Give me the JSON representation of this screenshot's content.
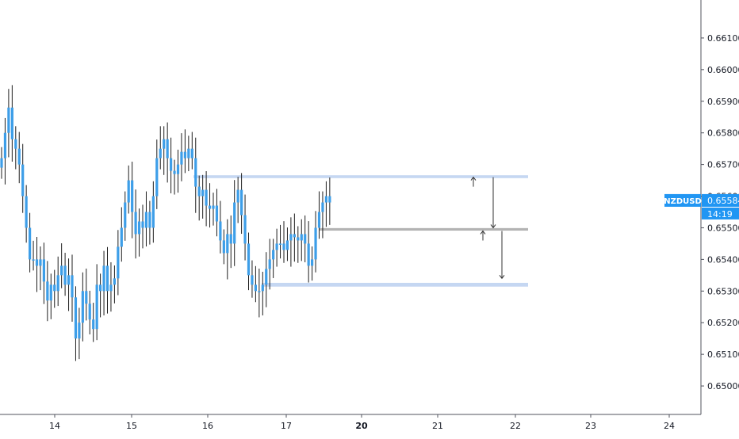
{
  "colors": {
    "background": "#ffffff",
    "candle": "#3d9ee8",
    "axis_line": "#50535e",
    "label_text": "#131722",
    "zone_blue": "#c5d7f2",
    "zone_grey": "#b3b3b3",
    "arrow": "#333333",
    "price_tag_bg": "#2196f3",
    "price_tag_text": "#ffffff"
  },
  "symbol": {
    "name": "NZDUSD",
    "last_price": "0.65584",
    "countdown": "14:19"
  },
  "chart_data": {
    "type": "candlestick",
    "title": "",
    "xlabel": "",
    "ylabel": "",
    "x_tick_labels": [
      "14",
      "15",
      "16",
      "17",
      "20",
      "21",
      "22",
      "23",
      "24"
    ],
    "y_tick_labels": [
      "0.66100",
      "0.66000",
      "0.65900",
      "0.65800",
      "0.65700",
      "0.65600",
      "0.65500",
      "0.65400",
      "0.65300",
      "0.65200",
      "0.65100",
      "0.65000"
    ],
    "ylim": [
      0.6491,
      0.662
    ],
    "series_close": [
      0.6572,
      0.658,
      0.6588,
      0.6578,
      0.6575,
      0.657,
      0.656,
      0.655,
      0.654,
      0.654,
      0.6538,
      0.654,
      0.6533,
      0.6527,
      0.6532,
      0.653,
      0.6535,
      0.6538,
      0.6532,
      0.6535,
      0.6528,
      0.6515,
      0.652,
      0.653,
      0.6526,
      0.6521,
      0.6518,
      0.6532,
      0.653,
      0.6538,
      0.653,
      0.6532,
      0.6534,
      0.6544,
      0.655,
      0.6558,
      0.6565,
      0.6555,
      0.6548,
      0.6552,
      0.655,
      0.6555,
      0.655,
      0.656,
      0.6572,
      0.6575,
      0.6578,
      0.6572,
      0.6568,
      0.6567,
      0.657,
      0.6574,
      0.6572,
      0.6575,
      0.6572,
      0.6563,
      0.656,
      0.6562,
      0.6557,
      0.6556,
      0.6557,
      0.6552,
      0.6546,
      0.6542,
      0.6548,
      0.6545,
      0.6558,
      0.6562,
      0.6554,
      0.6545,
      0.6535,
      0.6532,
      0.653,
      0.653,
      0.6532,
      0.6537,
      0.654,
      0.6543,
      0.6545,
      0.6545,
      0.6543,
      0.6546,
      0.6548,
      0.6547,
      0.6546,
      0.6548,
      0.6545,
      0.6538,
      0.654,
      0.655,
      0.6555,
      0.6558,
      0.656,
      0.6558
    ],
    "zones": [
      {
        "label": "upper",
        "top": 0.65666,
        "bottom": 0.65657
      },
      {
        "label": "middle",
        "top": 0.65499,
        "bottom": 0.65491
      },
      {
        "label": "lower",
        "top": 0.65326,
        "bottom": 0.65314
      }
    ],
    "arrows": [
      {
        "from": 0.6566,
        "to": 0.655,
        "kind": "up-tick-then-down"
      },
      {
        "from": 0.6549,
        "to": 0.6534,
        "kind": "up-tick-then-down"
      }
    ],
    "grid": false,
    "legend": "none"
  }
}
